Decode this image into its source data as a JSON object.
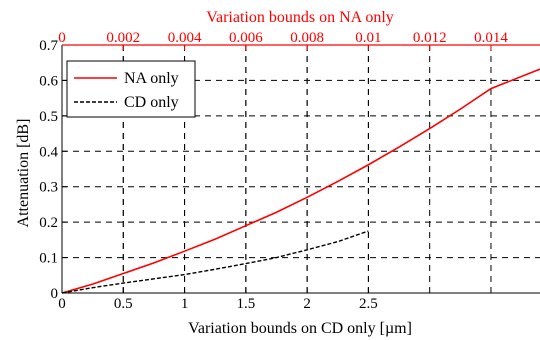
{
  "chart_data": {
    "type": "line",
    "ylabel": "Attenuation [dB]",
    "xlabel_bottom": "Variation bounds on CD only [µm]",
    "xlabel_top": "Variation bounds on NA only",
    "ylim": [
      0,
      0.7
    ],
    "xlim_bottom": [
      0,
      3.9
    ],
    "xlim_top": [
      0,
      0.0156
    ],
    "yticks": [
      "0",
      "0.1",
      "0.2",
      "0.3",
      "0.4",
      "0.5",
      "0.6",
      "0.7"
    ],
    "xticks_bottom": [
      "0",
      "0.5",
      "1",
      "1.5",
      "2",
      "2.5"
    ],
    "xticks_top": [
      "0",
      "0.002",
      "0.004",
      "0.006",
      "0.008",
      "0.01",
      "0.012",
      "0.014"
    ],
    "grid": true,
    "legend_position": "top-left",
    "series": [
      {
        "name": "NA only",
        "color": "#ff0000",
        "dash": "solid",
        "axis": "top",
        "x": [
          0,
          0.001,
          0.002,
          0.003,
          0.004,
          0.005,
          0.006,
          0.007,
          0.008,
          0.009,
          0.01,
          0.011,
          0.012,
          0.013,
          0.014,
          0.0156
        ],
        "y": [
          0,
          0.025,
          0.055,
          0.085,
          0.118,
          0.152,
          0.19,
          0.228,
          0.27,
          0.315,
          0.362,
          0.412,
          0.464,
          0.519,
          0.577,
          0.632
        ]
      },
      {
        "name": "CD only",
        "color": "#000000",
        "dash": "dashed",
        "axis": "bottom",
        "x": [
          0,
          0.25,
          0.5,
          0.75,
          1.0,
          1.25,
          1.5,
          1.75,
          2.0,
          2.25,
          2.5
        ],
        "y": [
          0,
          0.015,
          0.028,
          0.04,
          0.052,
          0.067,
          0.083,
          0.1,
          0.122,
          0.145,
          0.175
        ]
      }
    ]
  }
}
